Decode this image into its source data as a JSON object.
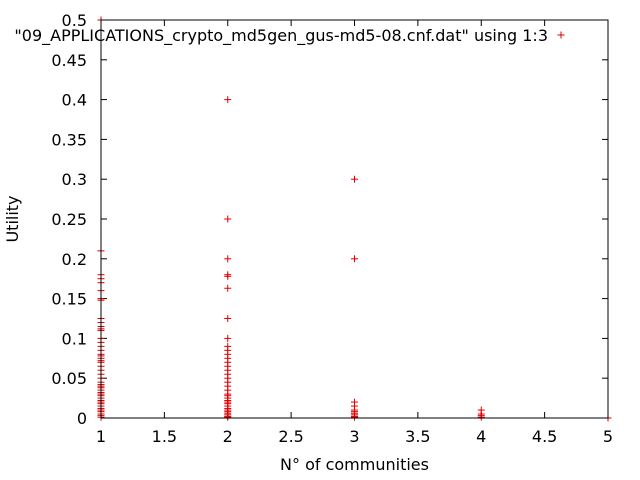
{
  "chart_data": {
    "type": "scatter",
    "xlabel": "N° of communities",
    "ylabel": "Utility",
    "xlim": [
      1,
      5
    ],
    "ylim": [
      0,
      0.5
    ],
    "x_ticks": [
      "1",
      "1.5",
      "2",
      "2.5",
      "3",
      "3.5",
      "4",
      "4.5",
      "5"
    ],
    "y_ticks": [
      "0",
      "0.05",
      "0.1",
      "0.15",
      "0.2",
      "0.25",
      "0.3",
      "0.35",
      "0.4",
      "0.45",
      "0.5"
    ],
    "grid": false,
    "legend_position": "top-right",
    "marker": "+",
    "series": [
      {
        "name": "\"09_APPLICATIONS_crypto_md5gen_gus-md5-08.cnf.dat\" using 1:3",
        "color": "#e00000",
        "points": [
          [
            1,
            0.5
          ],
          [
            1,
            0.21
          ],
          [
            1,
            0.18
          ],
          [
            1,
            0.175
          ],
          [
            1,
            0.17
          ],
          [
            1,
            0.16
          ],
          [
            1,
            0.15
          ],
          [
            1,
            0.148
          ],
          [
            1,
            0.125
          ],
          [
            1,
            0.12
          ],
          [
            1,
            0.115
          ],
          [
            1,
            0.112
          ],
          [
            1,
            0.11
          ],
          [
            1,
            0.1
          ],
          [
            1,
            0.095
          ],
          [
            1,
            0.09
          ],
          [
            1,
            0.085
          ],
          [
            1,
            0.08
          ],
          [
            1,
            0.078
          ],
          [
            1,
            0.075
          ],
          [
            1,
            0.072
          ],
          [
            1,
            0.07
          ],
          [
            1,
            0.065
          ],
          [
            1,
            0.06
          ],
          [
            1,
            0.055
          ],
          [
            1,
            0.05
          ],
          [
            1,
            0.045
          ],
          [
            1,
            0.042
          ],
          [
            1,
            0.04
          ],
          [
            1,
            0.038
          ],
          [
            1,
            0.035
          ],
          [
            1,
            0.032
          ],
          [
            1,
            0.03
          ],
          [
            1,
            0.028
          ],
          [
            1,
            0.025
          ],
          [
            1,
            0.022
          ],
          [
            1,
            0.02
          ],
          [
            1,
            0.018
          ],
          [
            1,
            0.015
          ],
          [
            1,
            0.012
          ],
          [
            1,
            0.01
          ],
          [
            1,
            0.008
          ],
          [
            1,
            0.005
          ],
          [
            1,
            0.003
          ],
          [
            1,
            0.001
          ],
          [
            2,
            0.4
          ],
          [
            2,
            0.25
          ],
          [
            2,
            0.2
          ],
          [
            2,
            0.18
          ],
          [
            2,
            0.178
          ],
          [
            2,
            0.163
          ],
          [
            2,
            0.125
          ],
          [
            2,
            0.1
          ],
          [
            2,
            0.09
          ],
          [
            2,
            0.085
          ],
          [
            2,
            0.08
          ],
          [
            2,
            0.075
          ],
          [
            2,
            0.07
          ],
          [
            2,
            0.065
          ],
          [
            2,
            0.06
          ],
          [
            2,
            0.055
          ],
          [
            2,
            0.05
          ],
          [
            2,
            0.045
          ],
          [
            2,
            0.04
          ],
          [
            2,
            0.035
          ],
          [
            2,
            0.03
          ],
          [
            2,
            0.028
          ],
          [
            2,
            0.025
          ],
          [
            2,
            0.022
          ],
          [
            2,
            0.02
          ],
          [
            2,
            0.018
          ],
          [
            2,
            0.015
          ],
          [
            2,
            0.012
          ],
          [
            2,
            0.01
          ],
          [
            2,
            0.008
          ],
          [
            2,
            0.006
          ],
          [
            2,
            0.004
          ],
          [
            2,
            0.002
          ],
          [
            2,
            0.001
          ],
          [
            3,
            0.3
          ],
          [
            3,
            0.2
          ],
          [
            3,
            0.02
          ],
          [
            3,
            0.015
          ],
          [
            3,
            0.01
          ],
          [
            3,
            0.008
          ],
          [
            3,
            0.006
          ],
          [
            3,
            0.004
          ],
          [
            3,
            0.002
          ],
          [
            3,
            0.001
          ],
          [
            4,
            0.01
          ],
          [
            4,
            0.005
          ],
          [
            4,
            0.003
          ],
          [
            4,
            0.001
          ],
          [
            5,
            0.0
          ]
        ]
      }
    ]
  }
}
